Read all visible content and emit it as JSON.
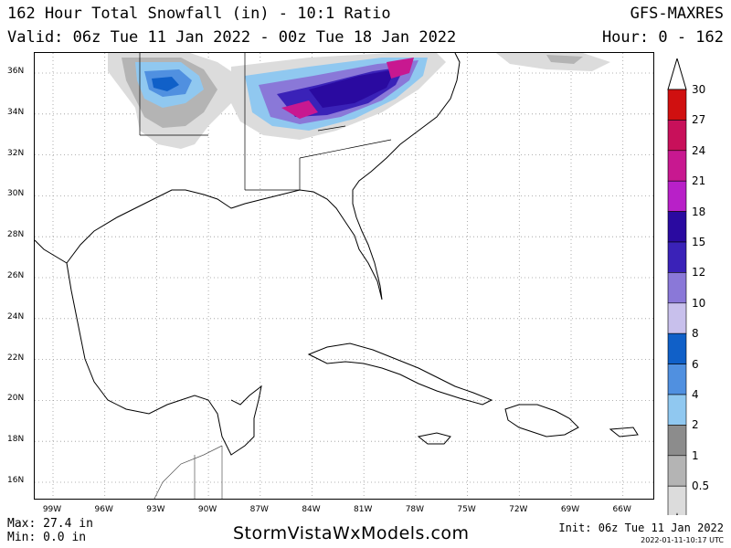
{
  "header": {
    "title": "162 Hour Total Snowfall (in) - 10:1 Ratio",
    "valid": "Valid: 06z Tue 11 Jan 2022 - 00z Tue 18 Jan 2022",
    "model": "GFS-MAXRES",
    "hour": "Hour: 0 - 162"
  },
  "lat_labels": [
    "36N",
    "34N",
    "32N",
    "30N",
    "28N",
    "26N",
    "24N",
    "22N",
    "20N",
    "18N",
    "16N"
  ],
  "lon_labels": [
    "99W",
    "96W",
    "93W",
    "90W",
    "87W",
    "84W",
    "81W",
    "78W",
    "75W",
    "72W",
    "69W",
    "66W"
  ],
  "legend": {
    "values": [
      "30",
      "27",
      "24",
      "21",
      "18",
      "15",
      "12",
      "10",
      "8",
      "6",
      "4",
      "2",
      "1",
      "0.5"
    ],
    "colors": [
      "#d01010",
      "#c8105a",
      "#c81890",
      "#b820c8",
      "#2a0aa0",
      "#3a22b8",
      "#8a78d8",
      "#c8c0ec",
      "#1060c8",
      "#5090e0",
      "#90c8f0",
      "#8c8c8c",
      "#b4b4b4",
      "#dcdcdc",
      "#f2f2f2"
    ]
  },
  "footer": {
    "max": "Max: 27.4 in",
    "min": "Min: 0.0 in",
    "site": "StormVistaWxModels.com",
    "init": "Init: 06z Tue 11 Jan 2022",
    "stamp": "2022-01-11-10:17 UTC"
  }
}
